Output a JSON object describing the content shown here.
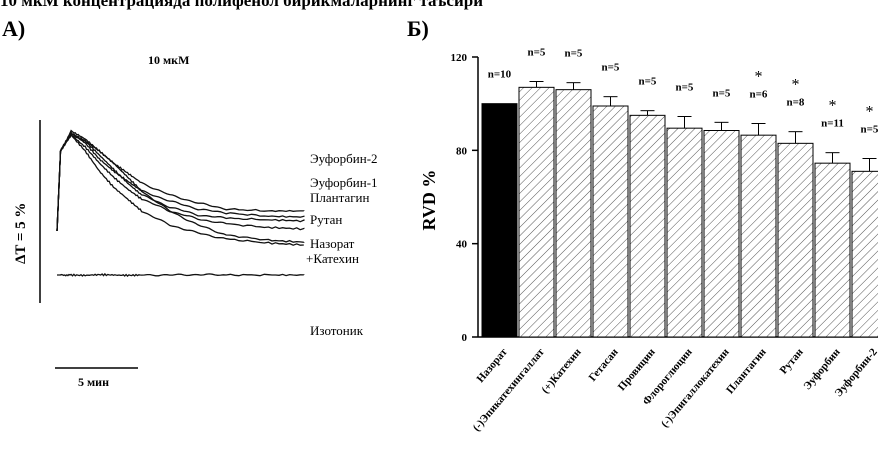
{
  "page": {
    "title": "10 мкМ концентрацияда полифенол бирикмаларнинг таъсири"
  },
  "panel_a": {
    "label": "А)",
    "concentration": "10 мкМ",
    "y_scale": "ΔT = 5 %",
    "x_scale": "5 мин"
  },
  "panel_b": {
    "label": "Б)"
  },
  "chart_data": [
    {
      "type": "line",
      "x_unit": "min",
      "series": [
        {
          "name": "Эуфорбин-2",
          "x": [
            0,
            0.25,
            1,
            2,
            3,
            4,
            5,
            6,
            8,
            10,
            12,
            15,
            17.5
          ],
          "y": [
            0,
            20,
            25,
            23,
            20,
            17,
            14.5,
            12,
            9,
            7,
            5.5,
            5,
            5
          ]
        },
        {
          "name": "Эуфорбин-1",
          "x": [
            0,
            0.25,
            1,
            2,
            3,
            4,
            5,
            6,
            8,
            10,
            12,
            15,
            17.5
          ],
          "y": [
            0,
            20,
            24.5,
            22,
            18,
            15,
            12.5,
            10,
            7.5,
            5.5,
            4.5,
            3.7,
            3.5
          ]
        },
        {
          "name": "Плантагин",
          "x": [
            0,
            0.25,
            1,
            2,
            3,
            4,
            5,
            6,
            8,
            10,
            12,
            15,
            17.5
          ],
          "y": [
            0,
            20,
            24,
            22.5,
            19,
            15.5,
            12,
            9,
            6,
            4,
            3.2,
            2.8,
            2.5
          ]
        },
        {
          "name": "Рутан",
          "x": [
            0,
            0.25,
            1,
            2,
            3,
            4,
            5,
            6,
            8,
            10,
            12,
            15,
            17.5
          ],
          "y": [
            0,
            20,
            24,
            21,
            17,
            13.5,
            10.5,
            8,
            5,
            3,
            1.8,
            0.9,
            0.5
          ]
        },
        {
          "name": "Назорат +Катехин",
          "x": [
            0,
            0.25,
            1,
            2,
            3,
            4,
            5,
            6,
            8,
            10,
            12,
            15,
            17.5
          ],
          "y": [
            0,
            20,
            24,
            20,
            15,
            11,
            8,
            5,
            1.5,
            -0.5,
            -2,
            -3,
            -3.5
          ]
        },
        {
          "name": "",
          "x": [
            0,
            0.25,
            1,
            2,
            3,
            4,
            5,
            6,
            8,
            10,
            12,
            15,
            17.5
          ],
          "y": [
            0,
            20,
            24.5,
            22.5,
            20,
            17,
            13.5,
            10,
            5,
            1.5,
            -1,
            -2.3,
            -2.8
          ]
        },
        {
          "name": "Изотоник",
          "x": [
            0,
            0.25,
            1,
            2,
            3,
            4,
            5,
            6,
            8,
            10,
            12,
            15,
            17.5
          ],
          "y": [
            -11,
            -11,
            -11,
            -11.1,
            -10.9,
            -11,
            -11.1,
            -11,
            -11,
            -10.9,
            -11,
            -11,
            -11
          ]
        }
      ]
    },
    {
      "type": "bar",
      "ylabel": "RVD %",
      "ylim": [
        0,
        120
      ],
      "yticks": [
        0,
        40,
        80,
        120
      ],
      "categories": [
        "Назорат",
        "(-)Эпикатехингаллат",
        "(+)Катехин",
        "Гетасан",
        "Провицин",
        "Флороглюцин",
        "(-)Эпигаллокатехин",
        "Плантагин",
        "Рутан",
        "Эуфорбин",
        "Эуфорбин-2"
      ],
      "values": [
        100,
        107,
        106,
        99,
        95,
        89.5,
        88.5,
        86.5,
        83,
        74.5,
        71
      ],
      "errors": [
        0,
        2.5,
        3,
        4,
        2,
        5,
        3.5,
        5,
        5,
        4.5,
        5.5
      ],
      "n_labels": [
        "n=10",
        "n=5",
        "n=5",
        "n=5",
        "n=5",
        "n=5",
        "n=5",
        "n=6",
        "n=8",
        "n=11",
        "n=5"
      ],
      "significant": [
        false,
        false,
        false,
        false,
        false,
        false,
        false,
        true,
        true,
        true,
        true
      ],
      "significance_mark": "*",
      "colors": {
        "control": "#000000",
        "treatment_fill": "#ffffff",
        "hatch": "#555555"
      }
    }
  ]
}
